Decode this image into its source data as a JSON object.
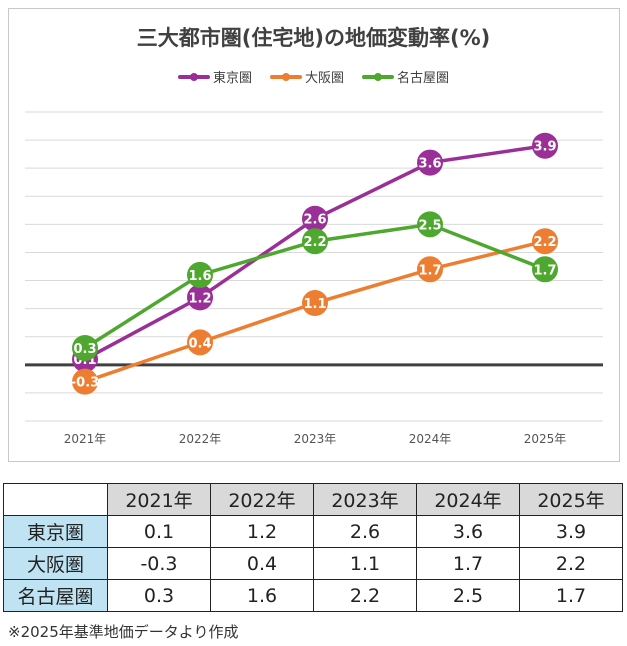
{
  "chart_data": {
    "type": "line",
    "title": "三大都市圏(住宅地)の地価変動率(%)",
    "categories": [
      "2021年",
      "2022年",
      "2023年",
      "2024年",
      "2025年"
    ],
    "series": [
      {
        "name": "東京圏",
        "color": "#9b2f98",
        "values": [
          0.1,
          1.2,
          2.6,
          3.6,
          3.9
        ]
      },
      {
        "name": "大阪圏",
        "color": "#ed7d31",
        "values": [
          -0.3,
          0.4,
          1.1,
          1.7,
          2.2
        ]
      },
      {
        "name": "名古屋圏",
        "color": "#4ea72e",
        "values": [
          0.3,
          1.6,
          2.2,
          2.5,
          1.7
        ]
      }
    ],
    "ylim": [
      -1,
      4.5
    ],
    "grid": true,
    "legend": "top",
    "data_labels": true
  },
  "table": {
    "header": [
      "",
      "2021年",
      "2022年",
      "2023年",
      "2024年",
      "2025年"
    ],
    "rows": [
      [
        "東京圏",
        "0.1",
        "1.2",
        "2.6",
        "3.6",
        "3.9"
      ],
      [
        "大阪圏",
        "-0.3",
        "0.4",
        "1.1",
        "1.7",
        "2.2"
      ],
      [
        "名古屋圏",
        "0.3",
        "1.6",
        "2.2",
        "2.5",
        "1.7"
      ]
    ]
  },
  "note": "※2025年基準地価データより作成"
}
